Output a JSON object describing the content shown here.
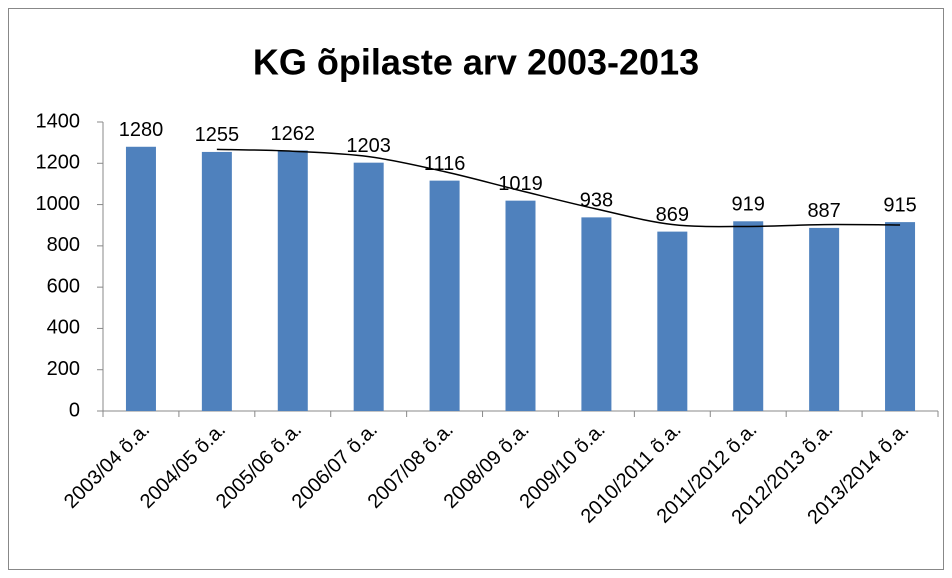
{
  "chart_data": {
    "type": "bar",
    "title": "KG õpilaste arv 2003-2013",
    "categories": [
      "2003/04 õ.a.",
      "2004/05 õ.a.",
      "2005/06 õ.a.",
      "2006/07 õ.a.",
      "2007/08 õ.a.",
      "2008/09 õ.a.",
      "2009/10 õ.a.",
      "2010/2011 õ.a.",
      "2011/2012 õ.a.",
      "2012/2013 õ.a.",
      "2013/2014 õ.a."
    ],
    "values": [
      1280,
      1255,
      1262,
      1203,
      1116,
      1019,
      938,
      869,
      919,
      887,
      915
    ],
    "color": "#4f81bd",
    "ylim": [
      0,
      1400
    ],
    "yticks": [
      0,
      200,
      400,
      600,
      800,
      1000,
      1200,
      1400
    ],
    "grid": false,
    "trendline": {
      "period": 2,
      "color": "#000000"
    }
  }
}
